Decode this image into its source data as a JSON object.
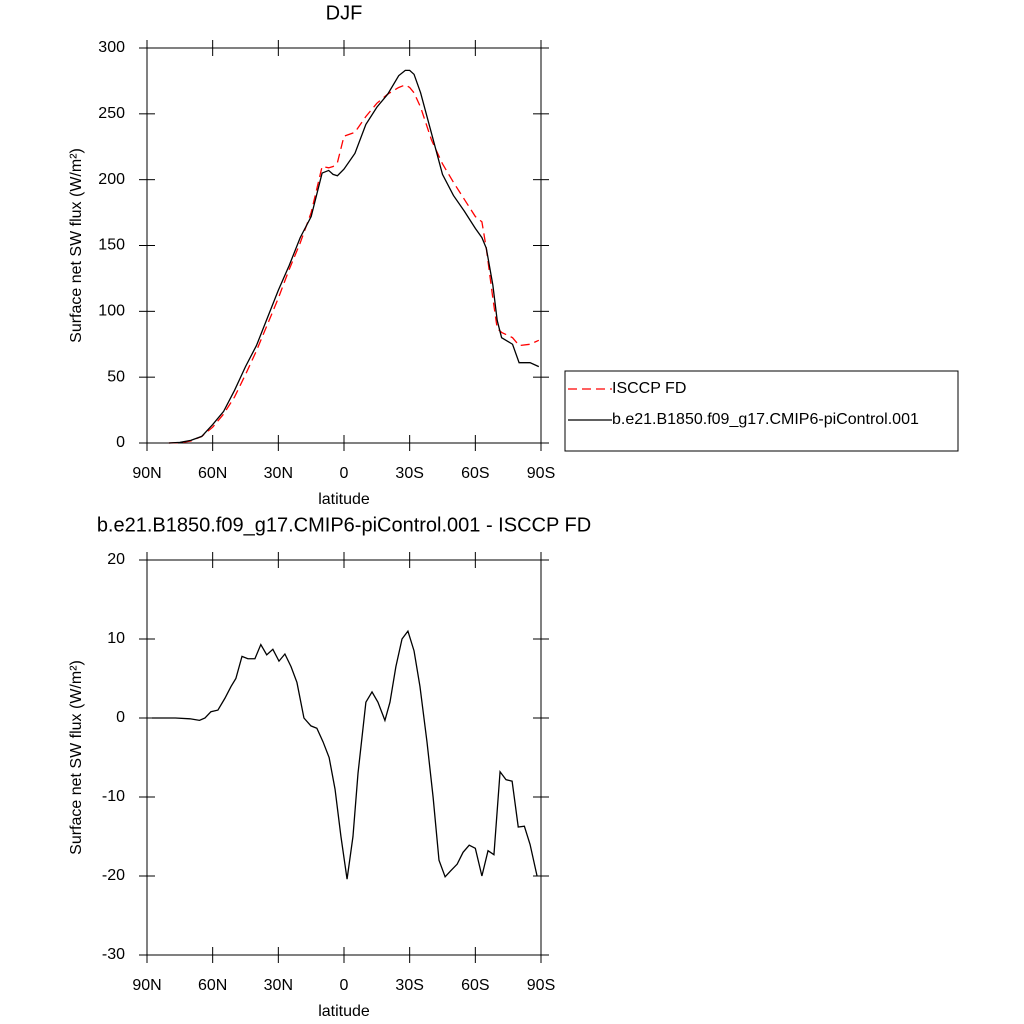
{
  "chart_data": [
    {
      "type": "line",
      "title": "DJF",
      "x_label": "latitude",
      "y_label": "Surface net SW flux (W/m²)",
      "x": [
        80,
        75,
        70,
        65,
        60,
        55,
        50,
        45,
        40,
        35,
        30,
        25,
        20,
        15,
        10,
        7,
        5,
        3,
        0,
        -5,
        -10,
        -15,
        -20,
        -25,
        -28,
        -30,
        -32,
        -35,
        -40,
        -45,
        -50,
        -55,
        -60,
        -63,
        -65,
        -68,
        -70,
        -72,
        -77,
        -80,
        -85,
        -89
      ],
      "series": [
        {
          "name": "ISCCP FD",
          "color": "#ff0000",
          "dash": "dashed",
          "values": [
            0,
            0.3,
            1.5,
            5,
            12,
            22,
            35,
            52,
            70,
            90,
            110,
            132,
            152,
            175,
            210,
            209,
            210,
            213,
            233,
            236,
            248,
            258,
            265,
            270,
            272,
            270,
            266,
            255,
            230,
            212,
            198,
            185,
            172,
            168,
            148,
            110,
            87,
            84,
            80,
            74,
            75,
            78
          ]
        },
        {
          "name": "b.e21.B1850.f09_g17.CMIP6-piControl.001",
          "color": "#000000",
          "dash": "solid",
          "values": [
            0,
            0.5,
            2,
            5,
            14,
            24,
            40,
            58,
            74,
            95,
            116,
            135,
            156,
            172,
            205,
            207,
            204,
            203,
            208,
            220,
            242,
            255,
            265,
            279,
            283,
            283,
            280,
            266,
            235,
            204,
            188,
            176,
            163,
            156,
            148,
            120,
            93,
            80,
            75,
            61,
            61,
            58
          ]
        }
      ],
      "xlim": [
        90,
        -90
      ],
      "xticks": [
        {
          "value": 90,
          "label": "90N"
        },
        {
          "value": 60,
          "label": "60N"
        },
        {
          "value": 30,
          "label": "30N"
        },
        0,
        {
          "value": -30,
          "label": "30S"
        },
        {
          "value": -60,
          "label": "60S"
        },
        {
          "value": -90,
          "label": "90S"
        }
      ],
      "ylim": [
        0,
        300
      ],
      "yticks": [
        0,
        50,
        100,
        150,
        200,
        250,
        300
      ],
      "legend": "outside-right"
    },
    {
      "type": "line",
      "title": "b.e21.B1850.f09_g17.CMIP6-piControl.001 - ISCCP FD",
      "x_label": "latitude",
      "y_label": "Surface net SW flux (W/m²)",
      "x": [
        87.7,
        77,
        70.4,
        66,
        63.5,
        60.8,
        57.6,
        54.4,
        51.6,
        49.4,
        46.6,
        43.9,
        40.7,
        38,
        35.3,
        32.5,
        29.7,
        27,
        24.2,
        21.5,
        18.3,
        15.1,
        12.4,
        9.6,
        6.8,
        4.1,
        1.4,
        -1.4,
        -4.1,
        -6.4,
        -10,
        -12.8,
        -15.5,
        -18.7,
        -21,
        -23.7,
        -26.5,
        -29.2,
        -32,
        -34.7,
        -37.9,
        -40.7,
        -43.4,
        -46.2,
        -48.9,
        -51.7,
        -54.4,
        -57.2,
        -60,
        -63,
        -65.8,
        -68.5,
        -71.3,
        -74,
        -76.8,
        -79.6,
        -82.4,
        -85,
        -88.2
      ],
      "series": [
        {
          "color": "#000000",
          "dash": "solid",
          "values": [
            0,
            0,
            -0.1,
            -0.3,
            0,
            0.8,
            1,
            2.5,
            4,
            5,
            7.8,
            7.5,
            7.5,
            9.3,
            8,
            8.7,
            7.2,
            8.1,
            6.5,
            4.5,
            0,
            -1,
            -1.3,
            -3,
            -5,
            -9,
            -15,
            -20.4,
            -15,
            -7,
            2,
            3.3,
            2,
            -0.3,
            2,
            6.5,
            10,
            11,
            8.5,
            4,
            -3,
            -10,
            -18,
            -20.1,
            -19.3,
            -18.5,
            -17,
            -16.1,
            -16.5,
            -20,
            -16.8,
            -17.3,
            -6.8,
            -7.8,
            -8,
            -13.8,
            -13.7,
            -16,
            -20
          ]
        }
      ],
      "xlim": [
        90,
        -90
      ],
      "xticks": [
        {
          "value": 90,
          "label": "90N"
        },
        {
          "value": 60,
          "label": "60N"
        },
        {
          "value": 30,
          "label": "30N"
        },
        0,
        {
          "value": -30,
          "label": "30S"
        },
        {
          "value": -60,
          "label": "60S"
        },
        {
          "value": -90,
          "label": "90S"
        }
      ],
      "ylim": [
        -30,
        20
      ],
      "yticks": [
        -30,
        -20,
        -10,
        0,
        10,
        20
      ]
    }
  ]
}
